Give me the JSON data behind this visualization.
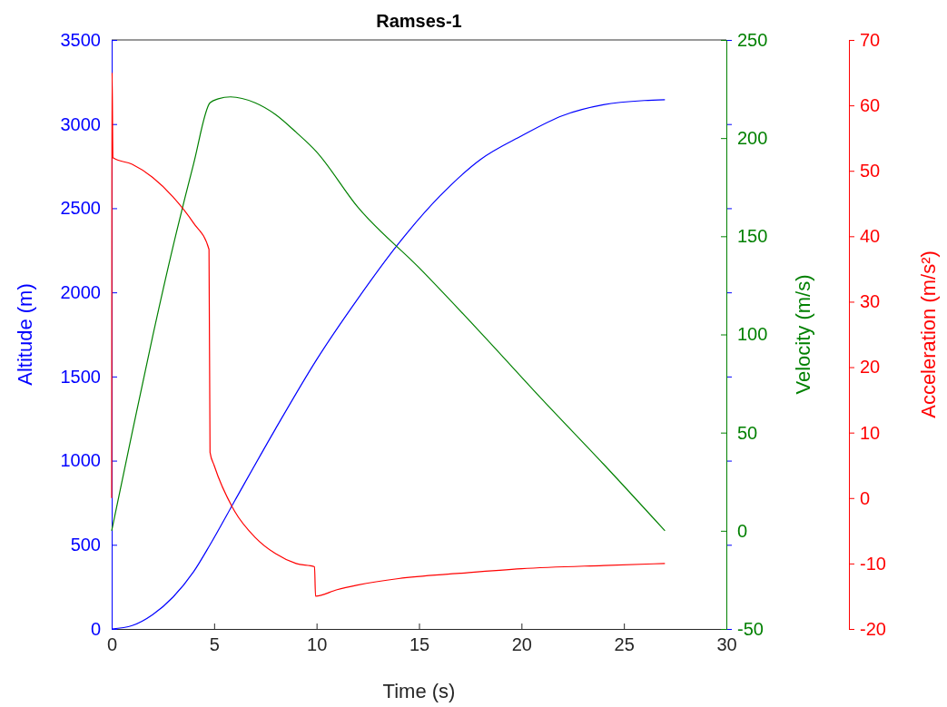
{
  "chart_data": {
    "type": "line",
    "title": "Ramses-1",
    "xlabel": "Time (s)",
    "ylabel": "Altitude (m)",
    "y2label": "Velocity (m/s)",
    "y3label": "Acceleration (m/s²)",
    "xlim": [
      0,
      30
    ],
    "xticks": [
      0,
      5,
      10,
      15,
      20,
      25,
      30
    ],
    "ylim": [
      0,
      3500
    ],
    "yticks": [
      0,
      500,
      1000,
      1500,
      2000,
      2500,
      3000,
      3500
    ],
    "y2lim": [
      -50,
      250
    ],
    "y2ticks": [
      -50,
      0,
      50,
      100,
      150,
      200,
      250
    ],
    "y3lim": [
      -20,
      70
    ],
    "y3ticks": [
      -20,
      -10,
      0,
      10,
      20,
      30,
      40,
      50,
      60,
      70
    ],
    "marker": "none",
    "line_style": "solid",
    "series": [
      {
        "color": "#0000ff",
        "axis": "y",
        "x": [
          0,
          1,
          2,
          3,
          4,
          4.8,
          6,
          8,
          10,
          12,
          14,
          16,
          18,
          20,
          22,
          24,
          26,
          27
        ],
        "values": [
          0,
          20,
          85,
          190,
          340,
          500,
          760,
          1190,
          1600,
          1960,
          2290,
          2570,
          2790,
          2930,
          3050,
          3115,
          3140,
          3145
        ]
      },
      {
        "color": "#008000",
        "axis": "y2",
        "x": [
          0,
          1,
          2,
          3,
          4,
          4.8,
          5.2,
          5.8,
          7,
          8,
          9,
          10,
          12,
          15,
          18,
          21,
          24,
          27
        ],
        "values": [
          0,
          50,
          99,
          145,
          187,
          218,
          220,
          221,
          218,
          212,
          203,
          193,
          165,
          134,
          101,
          67,
          34,
          0
        ]
      },
      {
        "color": "#ff0000",
        "axis": "y3",
        "x": [
          0,
          0.02,
          0.06,
          1,
          2,
          3,
          4,
          4.75,
          4.8,
          5,
          6,
          7,
          8,
          9,
          9.9,
          9.95,
          11,
          12,
          14,
          17,
          20,
          24,
          27
        ],
        "values": [
          0,
          65,
          52,
          51,
          49,
          46,
          42,
          38,
          7,
          5,
          -2,
          -6,
          -8.5,
          -10,
          -10.5,
          -15,
          -14,
          -13.3,
          -12.3,
          -11.5,
          -10.8,
          -10.3,
          -10
        ]
      }
    ]
  }
}
